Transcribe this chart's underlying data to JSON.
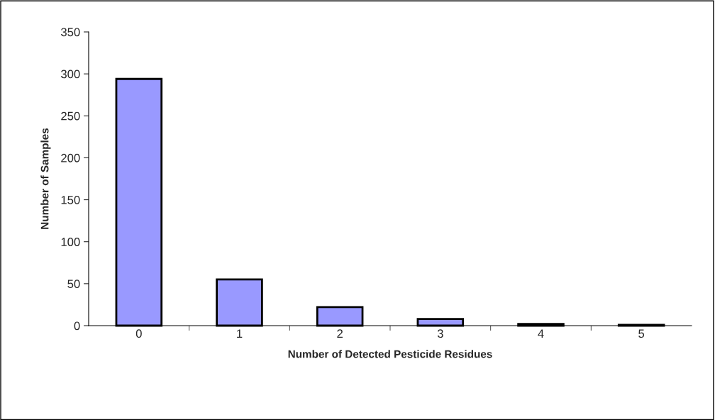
{
  "chart_data": {
    "type": "bar",
    "xlabel": "Number of Detected Pesticide Residues",
    "ylabel": "Number of Samples",
    "categories": [
      "0",
      "1",
      "2",
      "3",
      "4",
      "5"
    ],
    "values": [
      294,
      55,
      22,
      8,
      2,
      1
    ],
    "color": "#9999ff",
    "ylim": [
      0,
      350
    ],
    "yticks": [
      0,
      50,
      100,
      150,
      200,
      250,
      300,
      350
    ],
    "grid": false
  }
}
